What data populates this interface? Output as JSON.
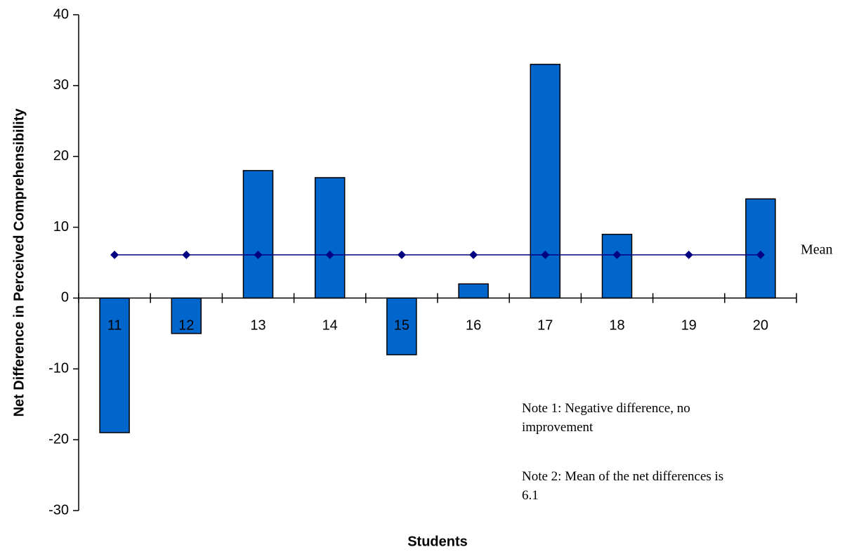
{
  "chart_data": {
    "type": "bar",
    "x_label": "Students",
    "y_label": "Net Difference in Perceived Comprehensibility",
    "categories": [
      "11",
      "12",
      "13",
      "14",
      "15",
      "16",
      "17",
      "18",
      "19",
      "20"
    ],
    "series": [
      {
        "type": "bar",
        "color": "#0066cc",
        "values": [
          -19,
          -5,
          18,
          17,
          -8,
          2,
          33,
          9,
          0,
          14
        ]
      },
      {
        "type": "line",
        "name": "Mean",
        "color": "#000080",
        "values": [
          6.1,
          6.1,
          6.1,
          6.1,
          6.1,
          6.1,
          6.1,
          6.1,
          6.1,
          6.1
        ]
      }
    ],
    "ylim": [
      -30,
      40
    ],
    "yticks": [
      -30,
      -20,
      -10,
      0,
      10,
      20,
      30,
      40
    ],
    "annotations": [
      "Note 1:  Negative difference, no improvement",
      "Note 2:  Mean of the net differences is 6.1"
    ]
  }
}
